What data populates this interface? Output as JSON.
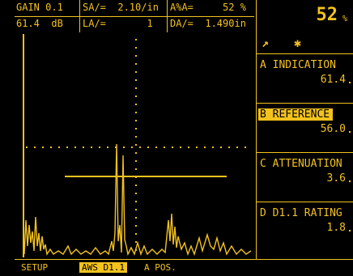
{
  "header": {
    "gain_label": "GAIN",
    "gain_step": "0.1",
    "gain_value": "61.4",
    "gain_unit": "dB",
    "sa": "SA/=  2.10/in",
    "la": "LA/=       1",
    "az": "A%A=     52 %",
    "da": "DA/=  1.490in",
    "percent_value": "52",
    "percent_unit": "%"
  },
  "side_menu": {
    "icons": [
      "ramp-icon",
      "star-icon"
    ],
    "items": [
      {
        "label": "A INDICATION",
        "value": "61.4"
      },
      {
        "label": "B REFERENCE",
        "value": "56.0"
      },
      {
        "label": "C ATTENUATION",
        "value": "3.6"
      },
      {
        "label": "D D1.1 RATING",
        "value": "1.8"
      }
    ]
  },
  "bottom_bar": {
    "items": [
      "SETUP",
      "AWS D1.1",
      "A POS."
    ]
  },
  "colors": {
    "trace": "#f3c21d",
    "background": "#000000"
  }
}
